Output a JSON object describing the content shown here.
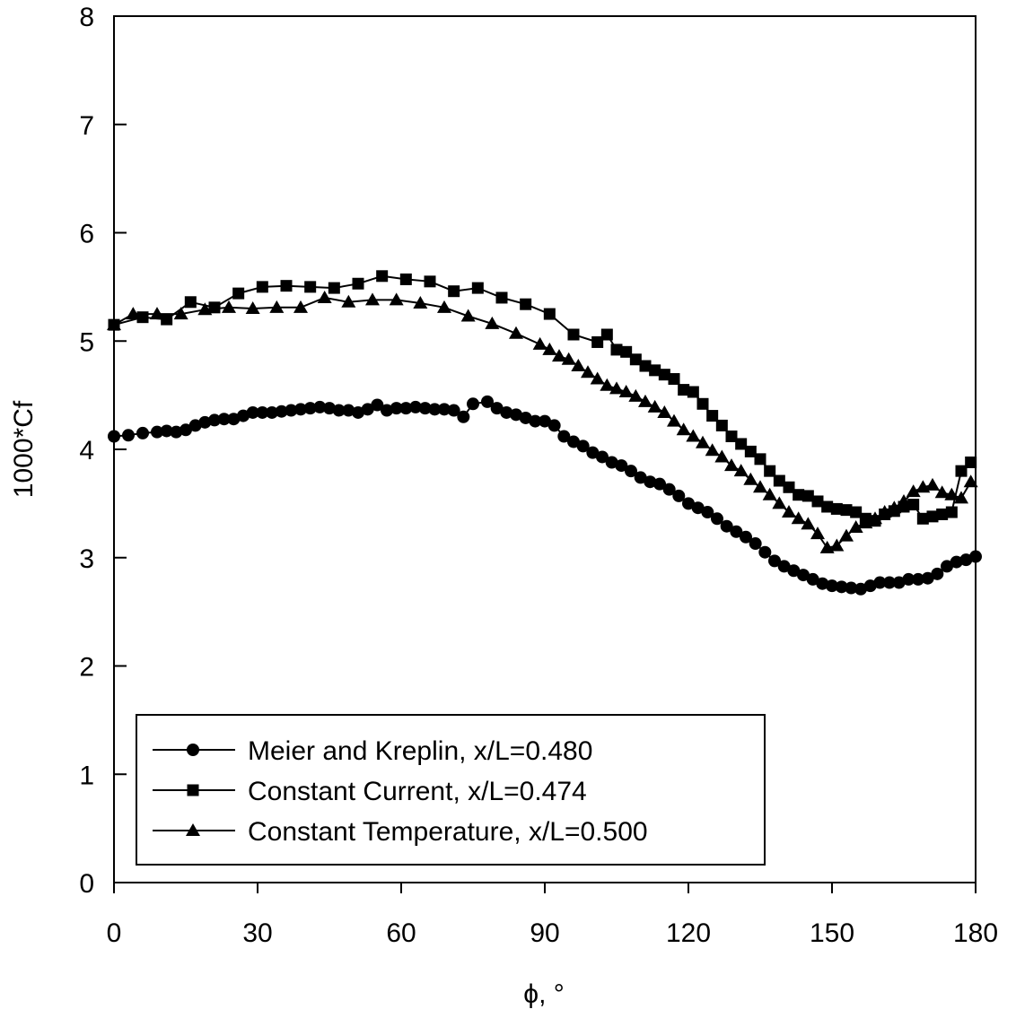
{
  "chart_data": {
    "type": "line",
    "xlabel": "ϕ, °",
    "ylabel": "1000*Cf",
    "xlim": [
      0,
      180
    ],
    "ylim": [
      0,
      8
    ],
    "xticks": [
      0,
      30,
      60,
      90,
      120,
      150,
      180
    ],
    "yticks": [
      0,
      1,
      2,
      3,
      4,
      5,
      6,
      7,
      8
    ],
    "grid": false,
    "legend_position": "bottom-left",
    "series": [
      {
        "name": "Meier and Kreplin, x/L=0.480",
        "marker": "circle",
        "x": [
          0,
          3,
          6,
          9,
          11,
          13,
          15,
          17,
          19,
          21,
          23,
          25,
          27,
          29,
          31,
          33,
          35,
          37,
          39,
          41,
          43,
          45,
          47,
          49,
          51,
          53,
          55,
          57,
          59,
          61,
          63,
          65,
          67,
          69,
          71,
          73,
          75,
          78,
          80,
          82,
          84,
          86,
          88,
          90,
          92,
          94,
          96,
          98,
          100,
          102,
          104,
          106,
          108,
          110,
          112,
          114,
          116,
          118,
          120,
          122,
          124,
          126,
          128,
          130,
          132,
          134,
          136,
          138,
          140,
          142,
          144,
          146,
          148,
          150,
          152,
          154,
          156,
          158,
          160,
          162,
          164,
          166,
          168,
          170,
          172,
          174,
          176,
          178,
          180
        ],
        "y": [
          4.12,
          4.13,
          4.15,
          4.16,
          4.17,
          4.16,
          4.18,
          4.22,
          4.25,
          4.27,
          4.28,
          4.28,
          4.31,
          4.34,
          4.34,
          4.34,
          4.35,
          4.36,
          4.37,
          4.38,
          4.39,
          4.38,
          4.36,
          4.36,
          4.34,
          4.37,
          4.41,
          4.36,
          4.38,
          4.38,
          4.39,
          4.38,
          4.37,
          4.37,
          4.36,
          4.3,
          4.42,
          4.44,
          4.38,
          4.34,
          4.32,
          4.29,
          4.26,
          4.26,
          4.22,
          4.12,
          4.07,
          4.03,
          3.97,
          3.93,
          3.88,
          3.85,
          3.8,
          3.74,
          3.7,
          3.68,
          3.63,
          3.57,
          3.5,
          3.46,
          3.42,
          3.36,
          3.29,
          3.24,
          3.19,
          3.13,
          3.05,
          2.97,
          2.92,
          2.88,
          2.84,
          2.8,
          2.76,
          2.74,
          2.73,
          2.72,
          2.71,
          2.74,
          2.77,
          2.77,
          2.77,
          2.8,
          2.8,
          2.81,
          2.85,
          2.92,
          2.96,
          2.98,
          3.01
        ]
      },
      {
        "name": "Constant Current, x/L=0.474",
        "marker": "square",
        "x": [
          0,
          6,
          11,
          16,
          21,
          26,
          31,
          36,
          41,
          46,
          51,
          56,
          61,
          66,
          71,
          76,
          81,
          86,
          91,
          96,
          101,
          103,
          105,
          107,
          109,
          111,
          113,
          115,
          117,
          119,
          121,
          123,
          125,
          127,
          129,
          131,
          133,
          135,
          137,
          139,
          141,
          143,
          145,
          147,
          149,
          151,
          153,
          155,
          157,
          159,
          161,
          163,
          165,
          167,
          169,
          171,
          173,
          175,
          177,
          179
        ],
        "y": [
          5.15,
          5.22,
          5.2,
          5.36,
          5.31,
          5.44,
          5.5,
          5.51,
          5.5,
          5.49,
          5.53,
          5.6,
          5.57,
          5.55,
          5.46,
          5.49,
          5.4,
          5.34,
          5.25,
          5.06,
          4.99,
          5.06,
          4.92,
          4.9,
          4.83,
          4.77,
          4.73,
          4.69,
          4.65,
          4.55,
          4.53,
          4.42,
          4.31,
          4.22,
          4.12,
          4.05,
          3.98,
          3.91,
          3.8,
          3.71,
          3.65,
          3.58,
          3.57,
          3.52,
          3.47,
          3.45,
          3.44,
          3.42,
          3.36,
          3.34,
          3.4,
          3.43,
          3.47,
          3.49,
          3.36,
          3.38,
          3.4,
          3.42,
          3.8,
          3.88
        ]
      },
      {
        "name": "Constant Temperature, x/L=0.500",
        "marker": "triangle",
        "x": [
          0,
          4,
          9,
          14,
          19,
          24,
          29,
          34,
          39,
          44,
          49,
          54,
          59,
          64,
          69,
          74,
          79,
          84,
          89,
          91,
          93,
          95,
          97,
          99,
          101,
          103,
          105,
          107,
          109,
          111,
          113,
          115,
          117,
          119,
          121,
          123,
          125,
          127,
          129,
          131,
          133,
          135,
          137,
          139,
          141,
          143,
          145,
          147,
          149,
          151,
          153,
          155,
          157,
          159,
          161,
          163,
          165,
          167,
          169,
          171,
          173,
          175,
          177,
          179
        ],
        "y": [
          5.15,
          5.25,
          5.25,
          5.25,
          5.29,
          5.31,
          5.3,
          5.31,
          5.31,
          5.4,
          5.36,
          5.38,
          5.38,
          5.35,
          5.31,
          5.23,
          5.16,
          5.07,
          4.97,
          4.92,
          4.86,
          4.83,
          4.77,
          4.71,
          4.65,
          4.59,
          4.56,
          4.53,
          4.49,
          4.44,
          4.39,
          4.34,
          4.26,
          4.18,
          4.12,
          4.06,
          3.99,
          3.93,
          3.85,
          3.8,
          3.72,
          3.65,
          3.58,
          3.5,
          3.42,
          3.36,
          3.31,
          3.22,
          3.09,
          3.11,
          3.2,
          3.28,
          3.32,
          3.36,
          3.42,
          3.46,
          3.52,
          3.61,
          3.65,
          3.67,
          3.6,
          3.58,
          3.55,
          3.7
        ]
      }
    ]
  }
}
